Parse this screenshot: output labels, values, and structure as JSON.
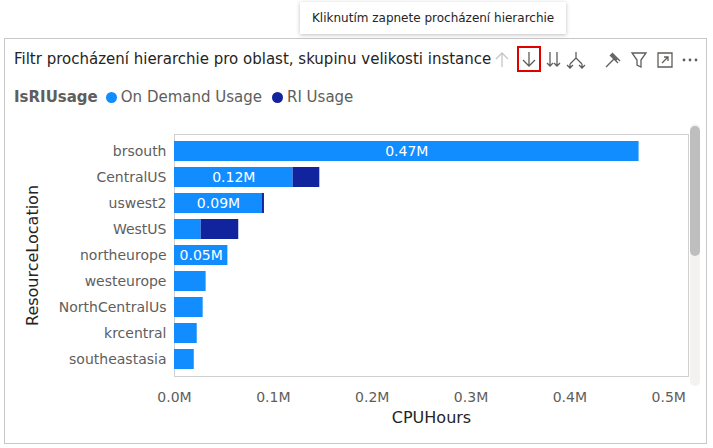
{
  "chart_data": {
    "type": "bar",
    "orientation": "horizontal",
    "stacked": true,
    "title": "Filtr procházení hierarchie pro oblast, skupinu velikosti instance",
    "annotations": [
      "Kliknutím zapnete procházení hierarchie"
    ],
    "legend_title": "IsRIUsage",
    "legend": "top-left",
    "x_label": "CPUHours",
    "y_label": "ResourceLocation",
    "categories": [
      "brsouth",
      "CentralUS",
      "uswest2",
      "WestUS",
      "northeurope",
      "westeurope",
      "NorthCentralUs",
      "krcentral",
      "southeastasia"
    ],
    "series": [
      {
        "name": "On Demand Usage",
        "color": "#118DFF",
        "values": [
          470000,
          120000,
          89000,
          27000,
          54000,
          32000,
          29000,
          23000,
          20000
        ],
        "value_labels": [
          "0.47M",
          "0.12M",
          "0.09M",
          null,
          "0.05M",
          null,
          null,
          null,
          null
        ]
      },
      {
        "name": "RI Usage",
        "color": "#12239E",
        "values": [
          0,
          27000,
          2000,
          38000,
          0,
          0,
          0,
          0,
          0
        ]
      }
    ],
    "xlim": [
      0,
      520000
    ],
    "xticks": [
      {
        "value": 0,
        "label": "0.0M"
      },
      {
        "value": 100000,
        "label": "0.1M"
      },
      {
        "value": 200000,
        "label": "0.2M"
      },
      {
        "value": 300000,
        "label": "0.3M"
      },
      {
        "value": 400000,
        "label": "0.4M"
      },
      {
        "value": 500000,
        "label": "0.5M"
      }
    ],
    "data_labels": true,
    "grid": false
  }
}
